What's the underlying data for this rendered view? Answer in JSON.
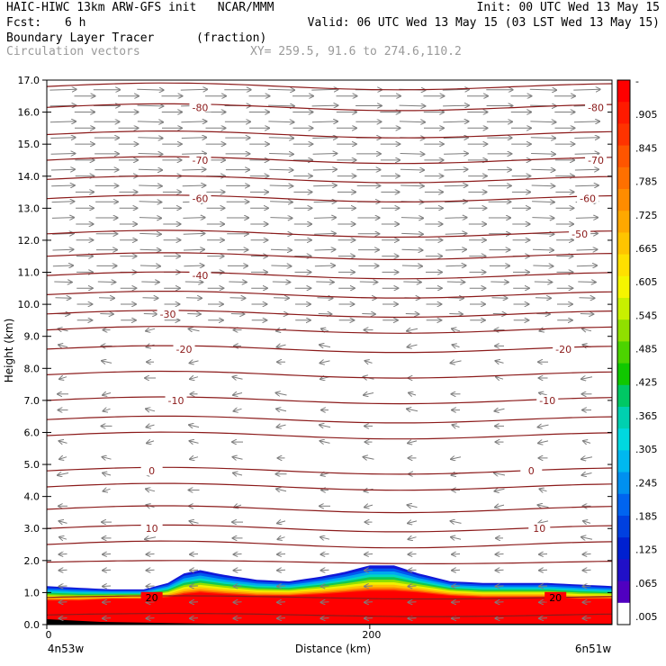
{
  "header": {
    "title_left": "HAIC-HIWC 13km ARW-GFS init   NCAR/MMM",
    "init": "Init: 00 UTC Wed 13 May 15",
    "fcst_label": "Fcst:",
    "fcst_value": "6 h",
    "valid": "Valid: 06 UTC Wed 13 May 15 (03 LST Wed 13 May 15)",
    "field_name": "Boundary Layer Tracer",
    "field_units": "(fraction)",
    "vectors_label": "Circulation vectors",
    "xy_label": "XY= 259.5, 91.6 to 274.6,110.2"
  },
  "colors": {
    "contour": "#8b1a1a",
    "vector": "#7d7d7d",
    "frame": "#000000"
  },
  "chart_data": {
    "type": "heatmap",
    "xlabel": "Distance (km)",
    "ylabel": "Height (km)",
    "xlim": [
      0,
      350
    ],
    "ylim": [
      0,
      17
    ],
    "x_ticks": [
      0,
      200
    ],
    "x_tick_labels": [
      "0",
      "200"
    ],
    "x_end_labels": [
      "4n53w",
      "6n51w"
    ],
    "y_ticks": [
      0,
      1,
      2,
      3,
      4,
      5,
      6,
      7,
      8,
      9,
      10,
      11,
      12,
      13,
      14,
      15,
      16,
      17
    ],
    "y_tick_labels": [
      "0.0",
      "1.0",
      "2.0",
      "3.0",
      "4.0",
      "5.0",
      "6.0",
      "7.0",
      "8.0",
      "9.0",
      "10.0",
      "11.0",
      "12.0",
      "13.0",
      "14.0",
      "15.0",
      "16.0",
      "17.0"
    ],
    "colorbar": {
      "labels": [
        "-",
        ".905",
        ".845",
        ".785",
        ".725",
        ".665",
        ".605",
        ".545",
        ".485",
        ".425",
        ".365",
        ".305",
        ".245",
        ".185",
        ".125",
        ".065",
        ".005"
      ],
      "colors": [
        "#ff0000",
        "#ff1a00",
        "#ff3300",
        "#ff5500",
        "#ff7000",
        "#ff8c00",
        "#ffa800",
        "#ffc400",
        "#ffe000",
        "#f5f500",
        "#c8f000",
        "#90e000",
        "#4cd400",
        "#10c800",
        "#00c864",
        "#00d0b0",
        "#00d8e0",
        "#00b8f0",
        "#0090f0",
        "#0064f0",
        "#0040e0",
        "#0020d0",
        "#2010c8",
        "#5000c0",
        "#ffffff"
      ]
    },
    "tracer_profile": {
      "x": [
        0,
        20,
        40,
        60,
        75,
        85,
        95,
        110,
        130,
        150,
        170,
        185,
        200,
        215,
        230,
        250,
        270,
        290,
        310,
        330,
        350
      ],
      "top_km": [
        1.2,
        1.15,
        1.1,
        1.1,
        1.3,
        1.6,
        1.7,
        1.55,
        1.4,
        1.35,
        1.5,
        1.65,
        1.85,
        1.85,
        1.6,
        1.35,
        1.3,
        1.3,
        1.3,
        1.25,
        1.2
      ],
      "red_top_km": [
        0.75,
        0.75,
        0.8,
        0.8,
        0.85,
        0.95,
        1.0,
        0.95,
        0.9,
        0.9,
        0.95,
        1.0,
        1.05,
        1.05,
        1.0,
        0.9,
        0.85,
        0.85,
        0.85,
        0.8,
        0.8
      ]
    },
    "temperature_contours": [
      {
        "label": "-80",
        "y_km": 16.15,
        "label_x": [
          95,
          340
        ]
      },
      {
        "label": "-70",
        "y_km": 14.5,
        "label_x": [
          95,
          340
        ]
      },
      {
        "label": "-60",
        "y_km": 13.3,
        "label_x": [
          95,
          335
        ]
      },
      {
        "label": "-50",
        "y_km": 12.2,
        "label_x": [
          330
        ]
      },
      {
        "label": "-40",
        "y_km": 10.9,
        "label_x": [
          95
        ]
      },
      {
        "label": "-30",
        "y_km": 9.7,
        "label_x": [
          75
        ]
      },
      {
        "label": "-20",
        "y_km": 8.6,
        "label_x": [
          85,
          320
        ]
      },
      {
        "label": "-10",
        "y_km": 7.0,
        "label_x": [
          80,
          310
        ]
      },
      {
        "label": "0",
        "y_km": 4.8,
        "label_x": [
          65,
          300
        ]
      },
      {
        "label": "10",
        "y_km": 3.0,
        "label_x": [
          65,
          305
        ]
      },
      {
        "label": "20",
        "y_km": 0.85,
        "label_x": [
          65,
          315
        ]
      }
    ],
    "contour_levels_unlabeled_km": [
      16.8,
      15.3,
      13.9,
      11.5,
      10.3,
      9.2,
      7.8,
      6.4,
      5.9,
      4.3,
      3.6,
      2.5,
      1.95,
      0.3
    ]
  }
}
